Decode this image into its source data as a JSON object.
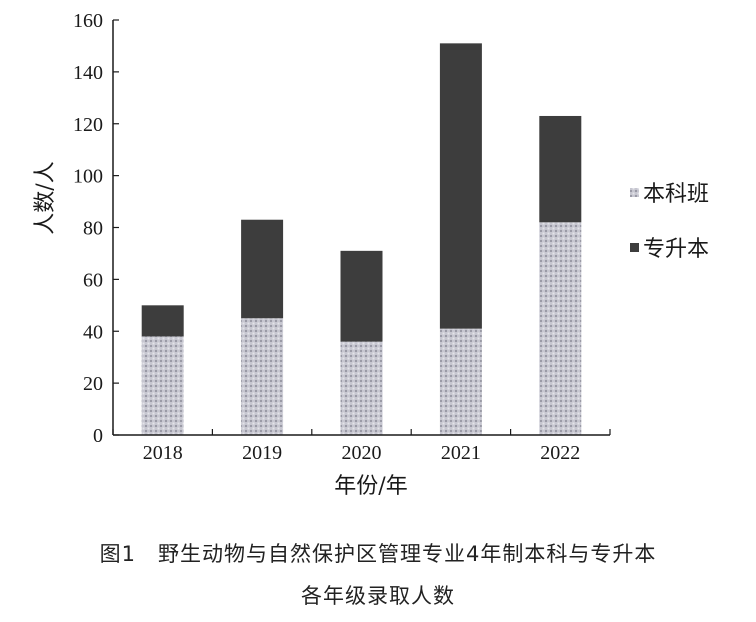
{
  "chart_data": {
    "type": "bar",
    "stacked": true,
    "categories": [
      "2018",
      "2019",
      "2020",
      "2021",
      "2022"
    ],
    "series": [
      {
        "name": "本科班",
        "values": [
          38,
          45,
          36,
          41,
          82
        ],
        "color": "#b8b8c4",
        "pattern": "dotted-grid"
      },
      {
        "name": "专升本",
        "values": [
          12,
          38,
          35,
          110,
          41
        ],
        "color": "#3d3d3d"
      }
    ],
    "xlabel": "年份/年",
    "ylabel": "人数/人",
    "ylim": [
      0,
      160
    ],
    "yticks": [
      0,
      20,
      40,
      60,
      80,
      100,
      120,
      140,
      160
    ],
    "legend_position": "right",
    "grid": false
  },
  "caption": {
    "line1": "图1　野生动物与自然保护区管理专业4年制本科与专升本",
    "line2": "各年级录取人数"
  }
}
